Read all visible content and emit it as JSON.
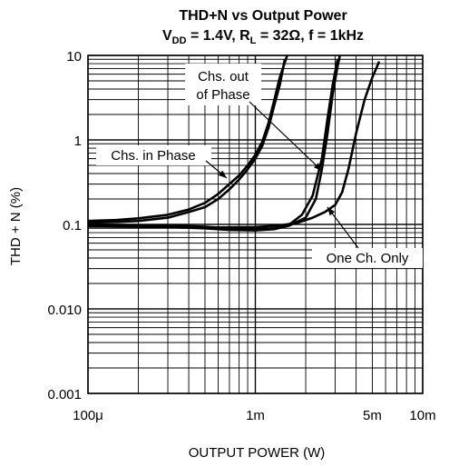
{
  "chart_data": {
    "type": "line",
    "title": "THD+N vs Output Power",
    "subtitle": {
      "v": "V",
      "v_sub": "DD",
      "p1": " = 1.4V, R",
      "r_sub": "L",
      "p2": " = 32Ω, f = 1kHz"
    },
    "xlabel": "OUTPUT POWER (W)",
    "ylabel": "THD + N (%)",
    "x_scale": "log",
    "y_scale": "log",
    "xlim": [
      0.0001,
      0.01
    ],
    "ylim": [
      0.001,
      10
    ],
    "grid": true,
    "x_ticks": [
      {
        "value": 0.0001,
        "label": "100μ"
      },
      {
        "value": 0.001,
        "label": "1m"
      },
      {
        "value": 0.005,
        "label": "5m"
      },
      {
        "value": 0.01,
        "label": "10m"
      }
    ],
    "y_ticks": [
      {
        "value": 10,
        "label": "10"
      },
      {
        "value": 1,
        "label": "1"
      },
      {
        "value": 0.1,
        "label": "0.1"
      },
      {
        "value": 0.01,
        "label": "0.010"
      },
      {
        "value": 0.001,
        "label": "0.001"
      }
    ],
    "series": [
      {
        "x": [
          0.0001,
          0.00015,
          0.0002,
          0.0003,
          0.0004,
          0.0005,
          0.0006,
          0.0007,
          0.0008,
          0.0009,
          0.001,
          0.0011,
          0.0012,
          0.0013,
          0.0014,
          0.0015
        ],
        "y": [
          0.105,
          0.107,
          0.11,
          0.12,
          0.14,
          0.16,
          0.2,
          0.26,
          0.34,
          0.45,
          0.6,
          0.85,
          1.4,
          2.6,
          4.5,
          9
        ]
      },
      {
        "x": [
          0.0001,
          0.00015,
          0.0002,
          0.0003,
          0.0004,
          0.0005,
          0.0006,
          0.0007,
          0.0008,
          0.0009,
          0.001,
          0.0011,
          0.0012,
          0.0013,
          0.0014,
          0.00155
        ],
        "y": [
          0.11,
          0.113,
          0.118,
          0.13,
          0.15,
          0.18,
          0.23,
          0.3,
          0.38,
          0.5,
          0.67,
          0.95,
          1.6,
          3,
          5.5,
          10
        ]
      },
      {
        "x": [
          0.0001,
          0.0002,
          0.0003,
          0.0005,
          0.0007,
          0.001,
          0.0013,
          0.0016,
          0.0019,
          0.0022,
          0.0025,
          0.0027,
          0.0029,
          0.0031
        ],
        "y": [
          0.1,
          0.098,
          0.097,
          0.094,
          0.09,
          0.088,
          0.09,
          0.1,
          0.13,
          0.22,
          0.6,
          1.8,
          4.5,
          9
        ]
      },
      {
        "x": [
          0.0001,
          0.0002,
          0.0003,
          0.0005,
          0.0007,
          0.001,
          0.0013,
          0.0016,
          0.002,
          0.0023,
          0.0025,
          0.0027,
          0.0029,
          0.0031,
          0.0032
        ],
        "y": [
          0.095,
          0.094,
          0.093,
          0.09,
          0.086,
          0.085,
          0.088,
          0.097,
          0.12,
          0.2,
          0.45,
          1.2,
          3.5,
          7.5,
          10
        ]
      },
      {
        "x": [
          0.0001,
          0.0003,
          0.0006,
          0.001,
          0.0014,
          0.0018,
          0.0022,
          0.0026,
          0.003,
          0.0033,
          0.0036,
          0.004,
          0.0045,
          0.005,
          0.0055
        ],
        "y": [
          0.095,
          0.093,
          0.092,
          0.093,
          0.097,
          0.105,
          0.12,
          0.14,
          0.17,
          0.24,
          0.45,
          1.2,
          3,
          5.5,
          8.5
        ]
      }
    ],
    "annotations": [
      {
        "lines": [
          "Chs. out",
          "of Phase"
        ]
      },
      {
        "lines": [
          "Chs. in Phase"
        ]
      },
      {
        "lines": [
          "One Ch. Only"
        ]
      }
    ]
  }
}
